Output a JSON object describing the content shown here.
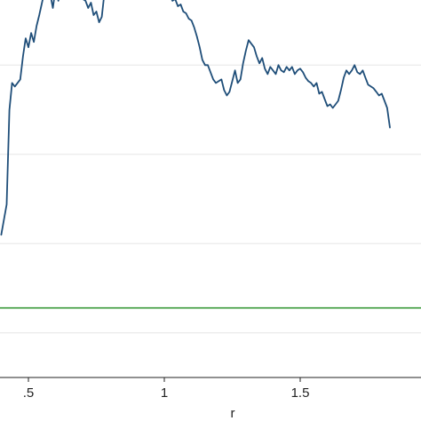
{
  "chart_data": {
    "type": "line",
    "title": "",
    "xlabel": "r",
    "ylabel": "",
    "grid": true,
    "xlim": [
      0.4,
      1.9
    ],
    "ylim": [
      -0.04,
      0.25
    ],
    "x_ticks": [
      {
        "value": 0.5,
        "label": ".5"
      },
      {
        "value": 1.0,
        "label": "1"
      },
      {
        "value": 1.5,
        "label": "1.5"
      }
    ],
    "y_gridlines": [
      0.0,
      0.05,
      0.1,
      0.15,
      0.2
    ],
    "reference_line": {
      "y": 0.014,
      "color": "#3a9a3a"
    },
    "series": [
      {
        "color": "#1f4e79",
        "points": [
          [
            0.4,
            0.055
          ],
          [
            0.42,
            0.072
          ],
          [
            0.43,
            0.125
          ],
          [
            0.44,
            0.14
          ],
          [
            0.45,
            0.138
          ],
          [
            0.47,
            0.142
          ],
          [
            0.48,
            0.155
          ],
          [
            0.49,
            0.165
          ],
          [
            0.5,
            0.16
          ],
          [
            0.51,
            0.168
          ],
          [
            0.52,
            0.163
          ],
          [
            0.53,
            0.172
          ],
          [
            0.54,
            0.178
          ],
          [
            0.55,
            0.185
          ],
          [
            0.56,
            0.192
          ],
          [
            0.57,
            0.188
          ],
          [
            0.58,
            0.19
          ],
          [
            0.59,
            0.182
          ],
          [
            0.6,
            0.193
          ],
          [
            0.61,
            0.186
          ],
          [
            0.62,
            0.192
          ],
          [
            0.63,
            0.189
          ],
          [
            0.64,
            0.196
          ],
          [
            0.65,
            0.192
          ],
          [
            0.66,
            0.198
          ],
          [
            0.67,
            0.194
          ],
          [
            0.68,
            0.199
          ],
          [
            0.69,
            0.192
          ],
          [
            0.7,
            0.187
          ],
          [
            0.71,
            0.186
          ],
          [
            0.72,
            0.182
          ],
          [
            0.73,
            0.185
          ],
          [
            0.74,
            0.178
          ],
          [
            0.75,
            0.18
          ],
          [
            0.76,
            0.174
          ],
          [
            0.77,
            0.177
          ],
          [
            0.78,
            0.191
          ],
          [
            0.79,
            0.196
          ],
          [
            0.8,
            0.198
          ],
          [
            0.81,
            0.204
          ],
          [
            0.82,
            0.203
          ],
          [
            0.83,
            0.206
          ],
          [
            0.84,
            0.207
          ],
          [
            0.85,
            0.208
          ],
          [
            0.86,
            0.21
          ],
          [
            0.87,
            0.211
          ],
          [
            0.88,
            0.21
          ],
          [
            0.89,
            0.207
          ],
          [
            0.9,
            0.204
          ],
          [
            0.91,
            0.206
          ],
          [
            0.92,
            0.203
          ],
          [
            0.93,
            0.2
          ],
          [
            0.94,
            0.201
          ],
          [
            0.95,
            0.199
          ],
          [
            0.96,
            0.197
          ],
          [
            0.97,
            0.199
          ],
          [
            0.98,
            0.193
          ],
          [
            0.99,
            0.19
          ],
          [
            1.0,
            0.192
          ],
          [
            1.01,
            0.195
          ],
          [
            1.02,
            0.189
          ],
          [
            1.03,
            0.186
          ],
          [
            1.04,
            0.187
          ],
          [
            1.05,
            0.183
          ],
          [
            1.06,
            0.184
          ],
          [
            1.07,
            0.18
          ],
          [
            1.08,
            0.179
          ],
          [
            1.09,
            0.176
          ],
          [
            1.1,
            0.175
          ],
          [
            1.11,
            0.171
          ],
          [
            1.12,
            0.166
          ],
          [
            1.13,
            0.16
          ],
          [
            1.14,
            0.153
          ],
          [
            1.15,
            0.15
          ],
          [
            1.16,
            0.15
          ],
          [
            1.17,
            0.146
          ],
          [
            1.18,
            0.142
          ],
          [
            1.19,
            0.14
          ],
          [
            1.2,
            0.141
          ],
          [
            1.21,
            0.142
          ],
          [
            1.22,
            0.136
          ],
          [
            1.23,
            0.133
          ],
          [
            1.24,
            0.135
          ],
          [
            1.25,
            0.141
          ],
          [
            1.26,
            0.147
          ],
          [
            1.27,
            0.14
          ],
          [
            1.28,
            0.142
          ],
          [
            1.29,
            0.151
          ],
          [
            1.3,
            0.158
          ],
          [
            1.31,
            0.164
          ],
          [
            1.32,
            0.162
          ],
          [
            1.33,
            0.16
          ],
          [
            1.34,
            0.155
          ],
          [
            1.35,
            0.151
          ],
          [
            1.36,
            0.154
          ],
          [
            1.37,
            0.148
          ],
          [
            1.38,
            0.145
          ],
          [
            1.39,
            0.149
          ],
          [
            1.4,
            0.147
          ],
          [
            1.41,
            0.145
          ],
          [
            1.42,
            0.15
          ],
          [
            1.43,
            0.147
          ],
          [
            1.44,
            0.146
          ],
          [
            1.45,
            0.149
          ],
          [
            1.46,
            0.147
          ],
          [
            1.47,
            0.149
          ],
          [
            1.48,
            0.145
          ],
          [
            1.49,
            0.147
          ],
          [
            1.5,
            0.148
          ],
          [
            1.51,
            0.146
          ],
          [
            1.52,
            0.143
          ],
          [
            1.53,
            0.141
          ],
          [
            1.54,
            0.14
          ],
          [
            1.55,
            0.138
          ],
          [
            1.56,
            0.14
          ],
          [
            1.57,
            0.134
          ],
          [
            1.58,
            0.135
          ],
          [
            1.59,
            0.131
          ],
          [
            1.6,
            0.127
          ],
          [
            1.61,
            0.128
          ],
          [
            1.62,
            0.126
          ],
          [
            1.63,
            0.128
          ],
          [
            1.64,
            0.13
          ],
          [
            1.65,
            0.136
          ],
          [
            1.66,
            0.143
          ],
          [
            1.67,
            0.147
          ],
          [
            1.68,
            0.145
          ],
          [
            1.69,
            0.147
          ],
          [
            1.7,
            0.15
          ],
          [
            1.71,
            0.146
          ],
          [
            1.72,
            0.145
          ],
          [
            1.73,
            0.147
          ],
          [
            1.74,
            0.143
          ],
          [
            1.75,
            0.139
          ],
          [
            1.76,
            0.138
          ],
          [
            1.77,
            0.137
          ],
          [
            1.78,
            0.135
          ],
          [
            1.79,
            0.133
          ],
          [
            1.8,
            0.134
          ],
          [
            1.81,
            0.13
          ],
          [
            1.82,
            0.126
          ],
          [
            1.83,
            0.115
          ]
        ]
      }
    ]
  }
}
